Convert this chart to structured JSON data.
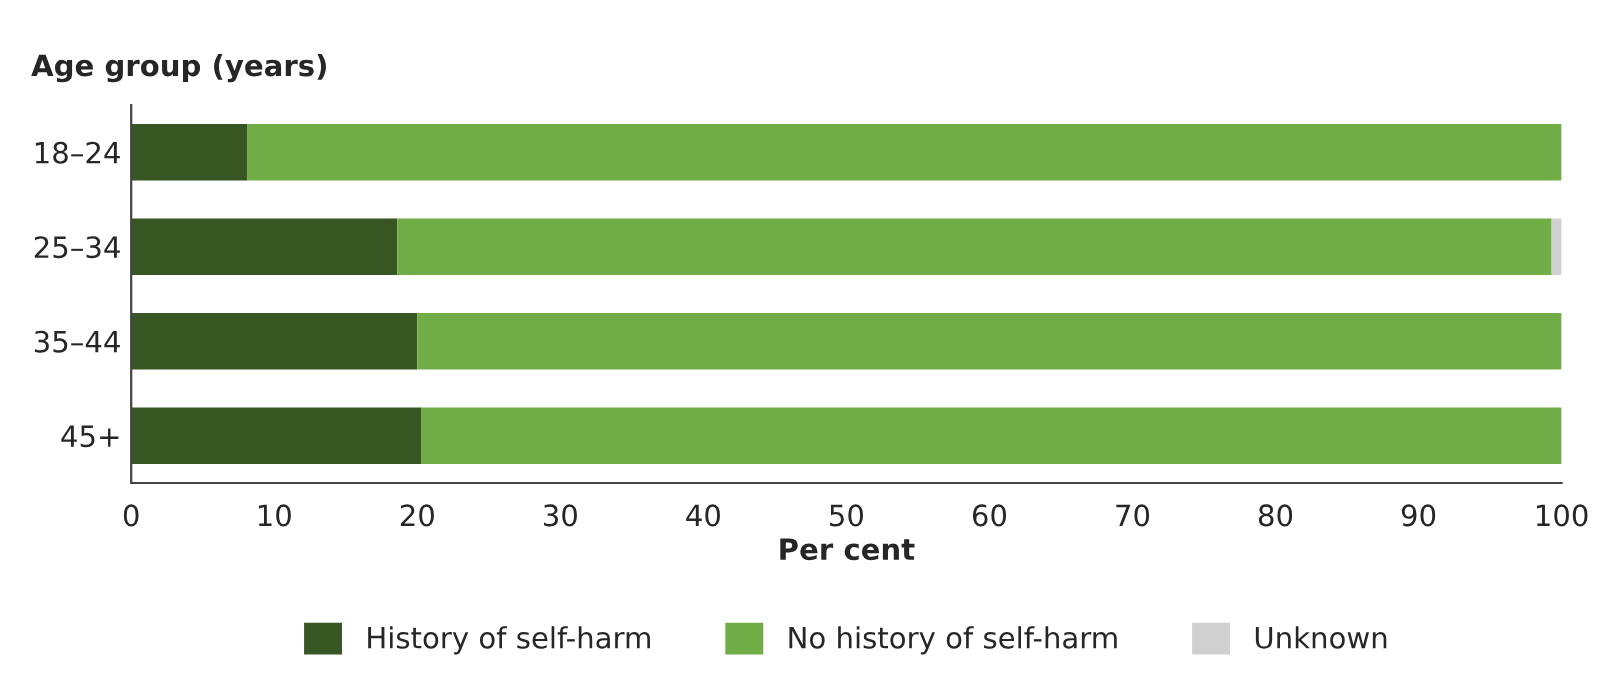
{
  "chart_data": {
    "type": "bar",
    "orientation": "horizontal",
    "stacked": true,
    "ylabel": "Age group (years)",
    "xlabel": "Per cent",
    "categories": [
      "18–24",
      "25–34",
      "35–44",
      "45+"
    ],
    "series": [
      {
        "name": "History of self-harm",
        "color": "#375623",
        "values": [
          8.1,
          18.6,
          20.0,
          20.3
        ]
      },
      {
        "name": "No history of self-harm",
        "color": "#70ad47",
        "values": [
          91.9,
          80.7,
          80.0,
          79.7
        ]
      },
      {
        "name": "Unknown",
        "color": "#d0d0d0",
        "values": [
          null,
          0.7,
          null,
          null
        ]
      }
    ],
    "xlim": [
      0,
      100
    ],
    "xticks": [
      0,
      10,
      20,
      30,
      40,
      50,
      60,
      70,
      80,
      90,
      100
    ],
    "grid": false,
    "legend": "bottom"
  }
}
